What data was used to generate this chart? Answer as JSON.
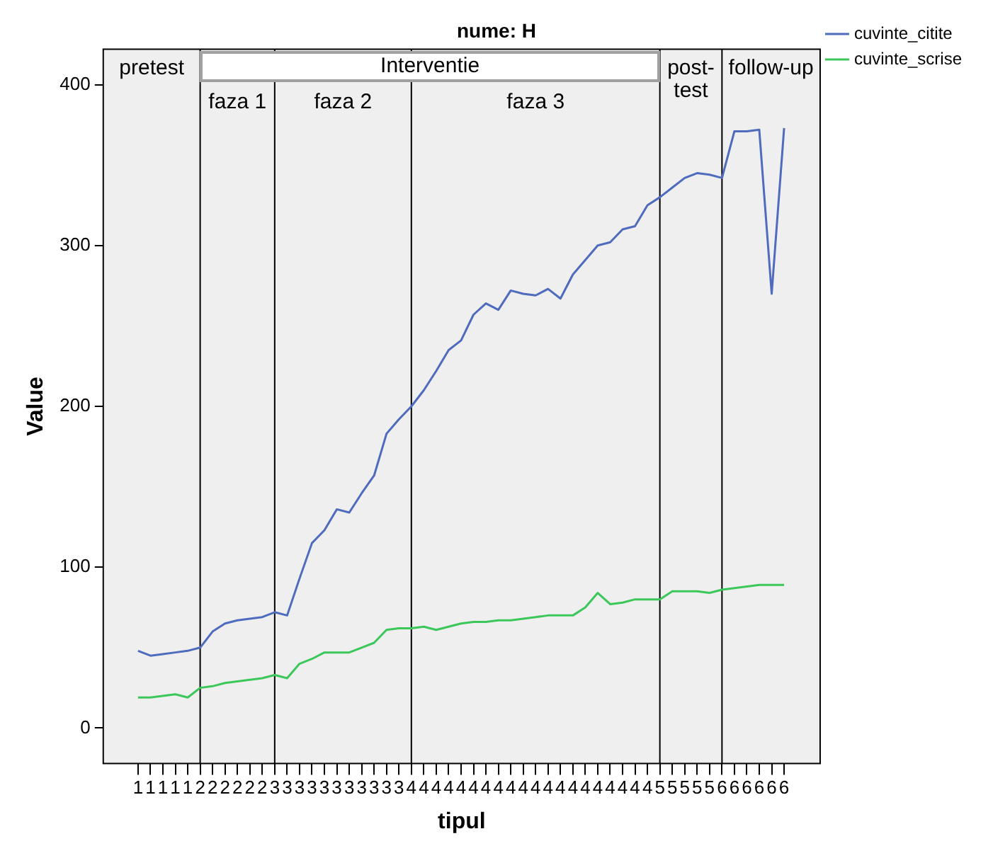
{
  "chart_data": {
    "type": "line",
    "title": "nume: H",
    "xlabel": "tipul",
    "ylabel": "Value",
    "categories": [
      "1",
      "1",
      "1",
      "1",
      "1",
      "2",
      "2",
      "2",
      "2",
      "2",
      "2",
      "3",
      "3",
      "3",
      "3",
      "3",
      "3",
      "3",
      "3",
      "3",
      "3",
      "3",
      "4",
      "4",
      "4",
      "4",
      "4",
      "4",
      "4",
      "4",
      "4",
      "4",
      "4",
      "4",
      "4",
      "4",
      "4",
      "4",
      "4",
      "4",
      "4",
      "4",
      "5",
      "5",
      "5",
      "5",
      "5",
      "6",
      "6",
      "6",
      "6",
      "6",
      "6"
    ],
    "ylim": [
      -22,
      422
    ],
    "yticks": [
      0,
      100,
      200,
      300,
      400
    ],
    "series": [
      {
        "name": "cuvinte_citite",
        "color": "#4f6bbd",
        "values": [
          48,
          45,
          46,
          47,
          48,
          50,
          60,
          65,
          67,
          68,
          69,
          72,
          70,
          93,
          115,
          123,
          136,
          134,
          146,
          157,
          183,
          192,
          200,
          210,
          222,
          235,
          241,
          257,
          264,
          260,
          272,
          270,
          269,
          273,
          267,
          282,
          291,
          300,
          302,
          310,
          312,
          325,
          330,
          336,
          342,
          345,
          344,
          342,
          371,
          371,
          372,
          270,
          373
        ]
      },
      {
        "name": "cuvinte_scrise",
        "color": "#3cc75a",
        "values": [
          19,
          19,
          20,
          21,
          19,
          25,
          26,
          28,
          29,
          30,
          31,
          33,
          31,
          40,
          43,
          47,
          47,
          47,
          50,
          53,
          61,
          62,
          62,
          63,
          61,
          63,
          65,
          66,
          66,
          67,
          67,
          68,
          69,
          70,
          70,
          70,
          75,
          84,
          77,
          78,
          80,
          80,
          80,
          85,
          85,
          85,
          84,
          86,
          87,
          88,
          89,
          89,
          89
        ]
      }
    ],
    "ref_lines": [
      {
        "axis": "x",
        "value": "2",
        "color": "#000000"
      },
      {
        "axis": "x",
        "value": "3",
        "color": "#000000"
      },
      {
        "axis": "x",
        "value": "4",
        "color": "#000000"
      },
      {
        "axis": "x",
        "value": "5",
        "color": "#000000"
      },
      {
        "axis": "x",
        "value": "6",
        "color": "#000000"
      }
    ],
    "annotations": [
      "pretest",
      "faza 1",
      "faza 2",
      "faza 3",
      "post-test",
      "follow-up",
      "Interventie"
    ],
    "legend": "top right",
    "marker": "none",
    "line_style": "solid"
  }
}
